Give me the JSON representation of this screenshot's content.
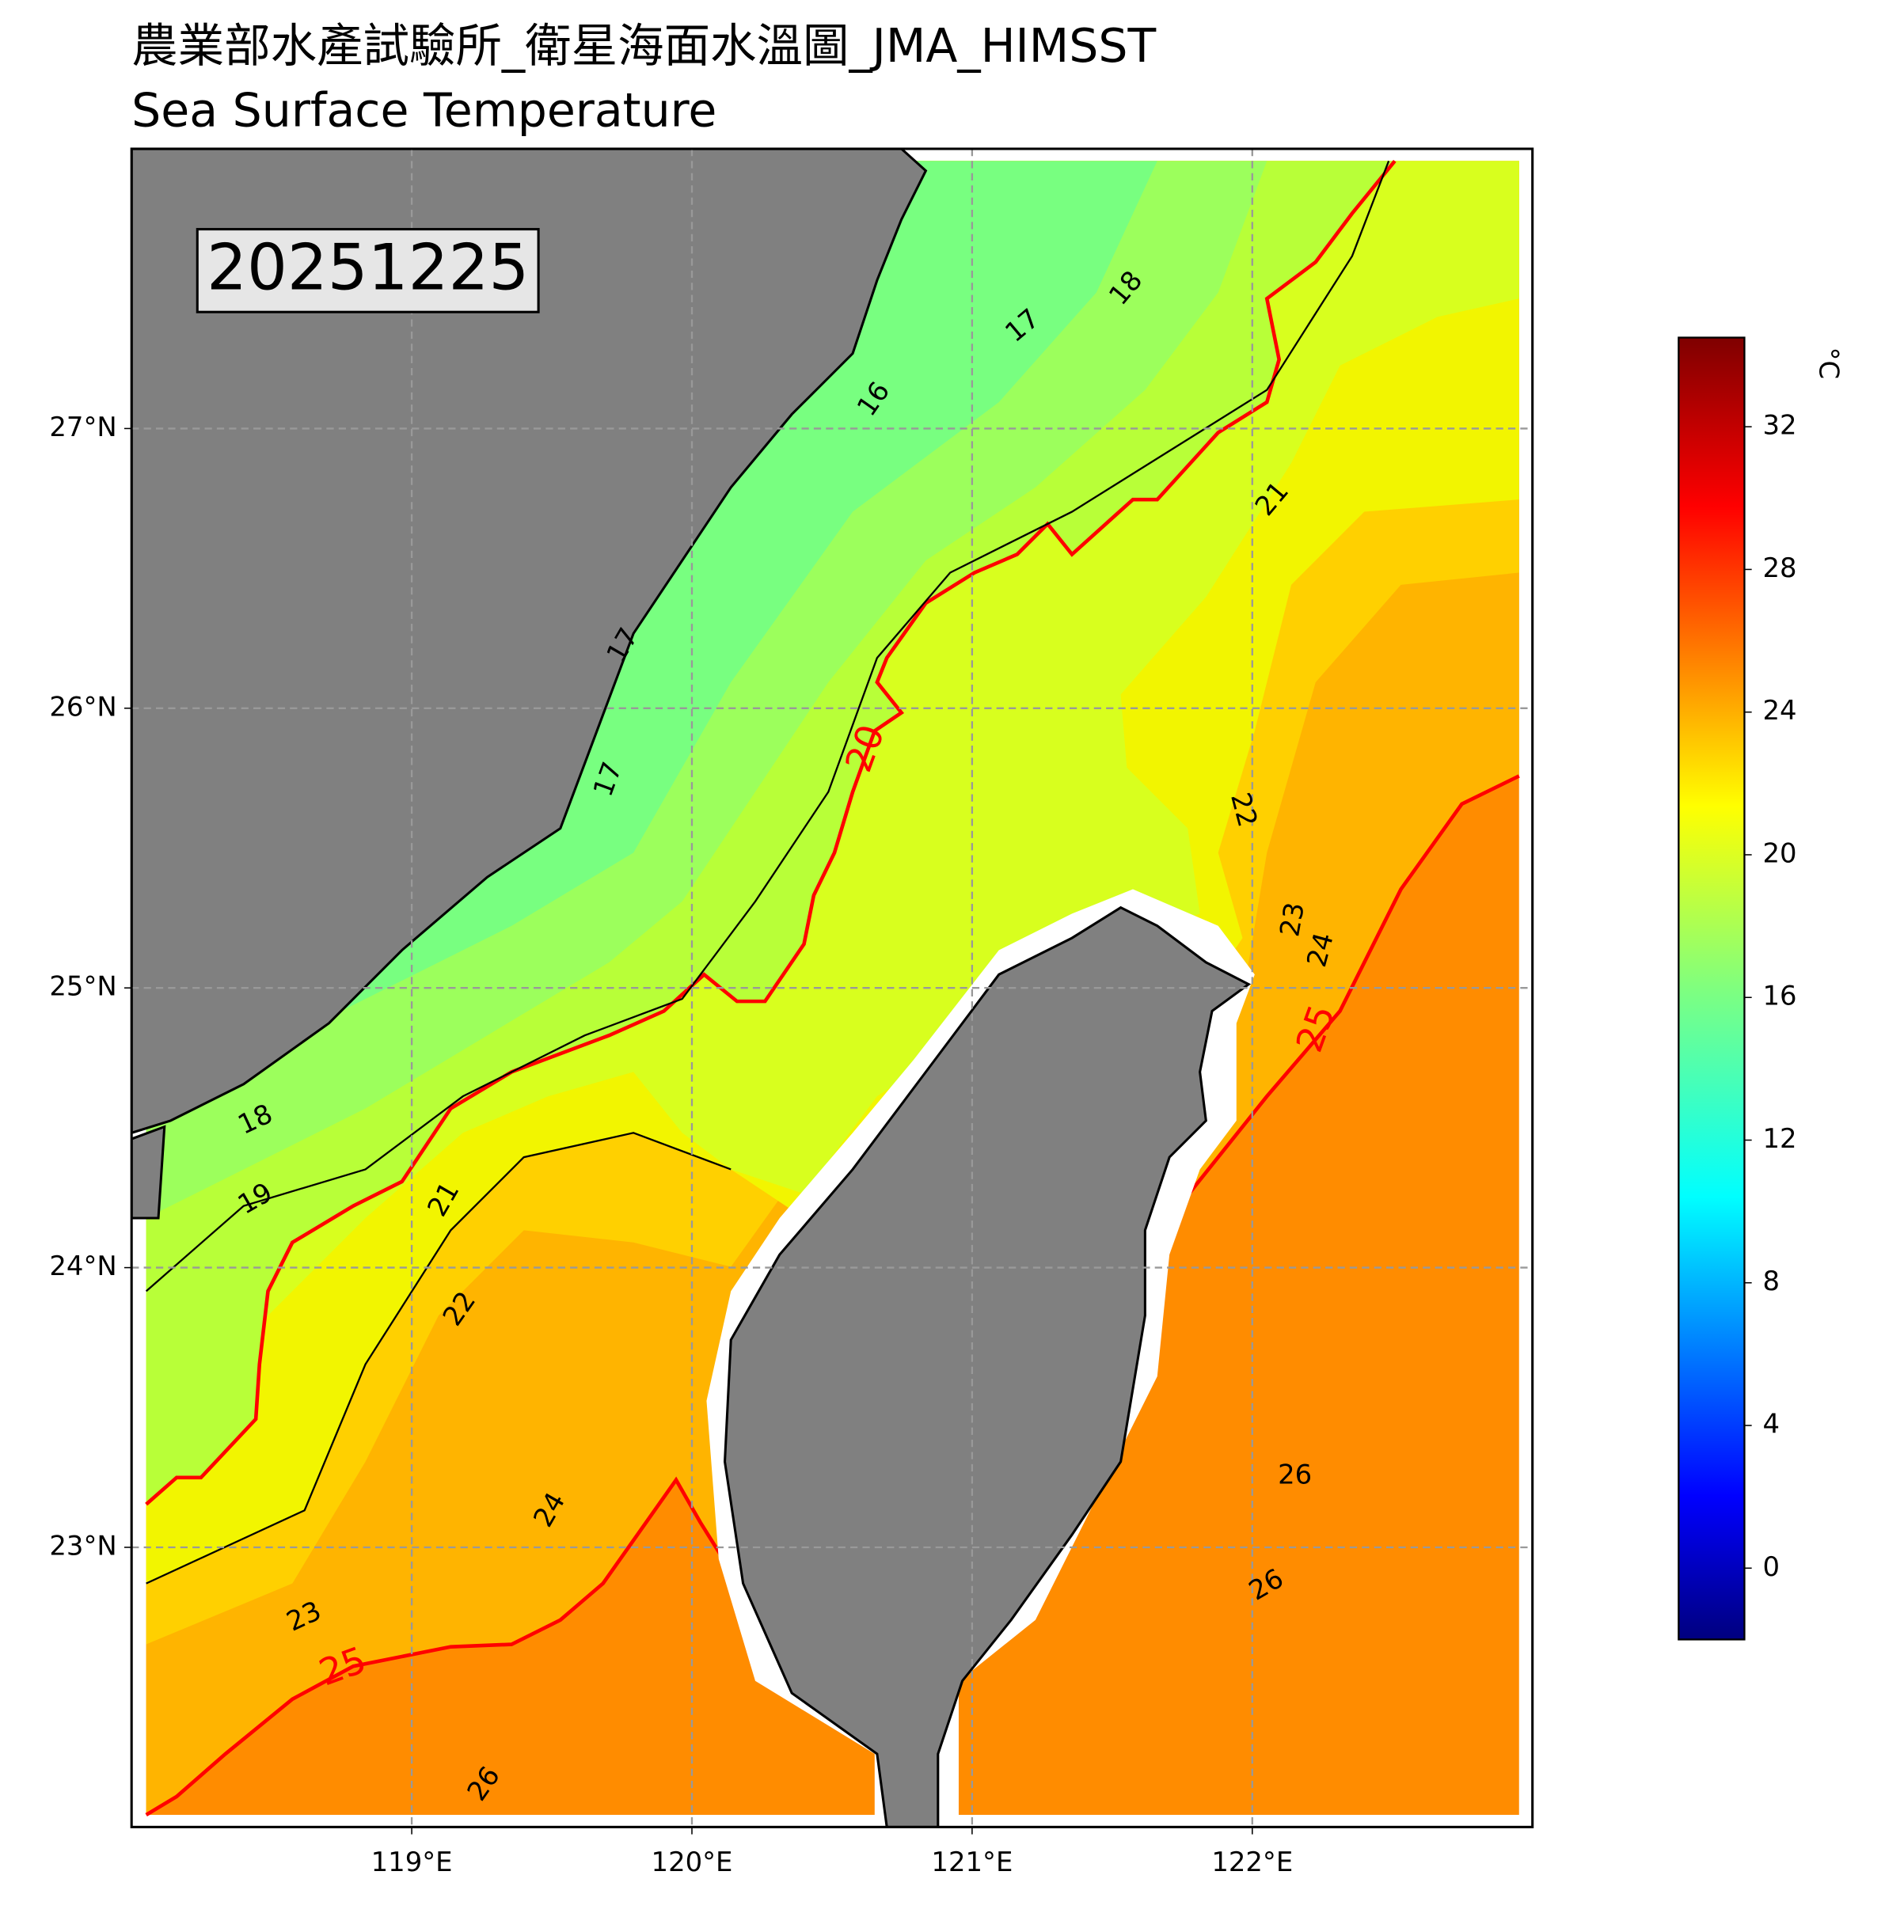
{
  "title": "農業部水產試驗所_衛星海面水溫圖_JMA_HIMSST",
  "subtitle": "Sea Surface Temperature",
  "date": "20251225",
  "map": {
    "lonlim": [
      118,
      123
    ],
    "latlim": [
      22,
      28
    ],
    "lon_ticks": [
      {
        "value": 119,
        "label": "119°E"
      },
      {
        "value": 120,
        "label": "120°E"
      },
      {
        "value": 121,
        "label": "121°E"
      },
      {
        "value": 122,
        "label": "122°E"
      }
    ],
    "lat_ticks": [
      {
        "value": 23,
        "label": "23°N"
      },
      {
        "value": 24,
        "label": "24°N"
      },
      {
        "value": 25,
        "label": "25°N"
      },
      {
        "value": 26,
        "label": "26°N"
      },
      {
        "value": 27,
        "label": "27°N"
      }
    ],
    "contour_labels": [
      16,
      17,
      18,
      17,
      17,
      18,
      19,
      21,
      22,
      24,
      23,
      25,
      26,
      20,
      21,
      22,
      23,
      24,
      25,
      26,
      26
    ],
    "highlight_levels": [
      20,
      25
    ],
    "highlight_color": "#ff0000"
  },
  "colorbar": {
    "range": [
      -2,
      34.5
    ],
    "ticks": [
      0,
      4,
      8,
      12,
      16,
      20,
      24,
      28,
      32
    ],
    "unit": "°C"
  }
}
